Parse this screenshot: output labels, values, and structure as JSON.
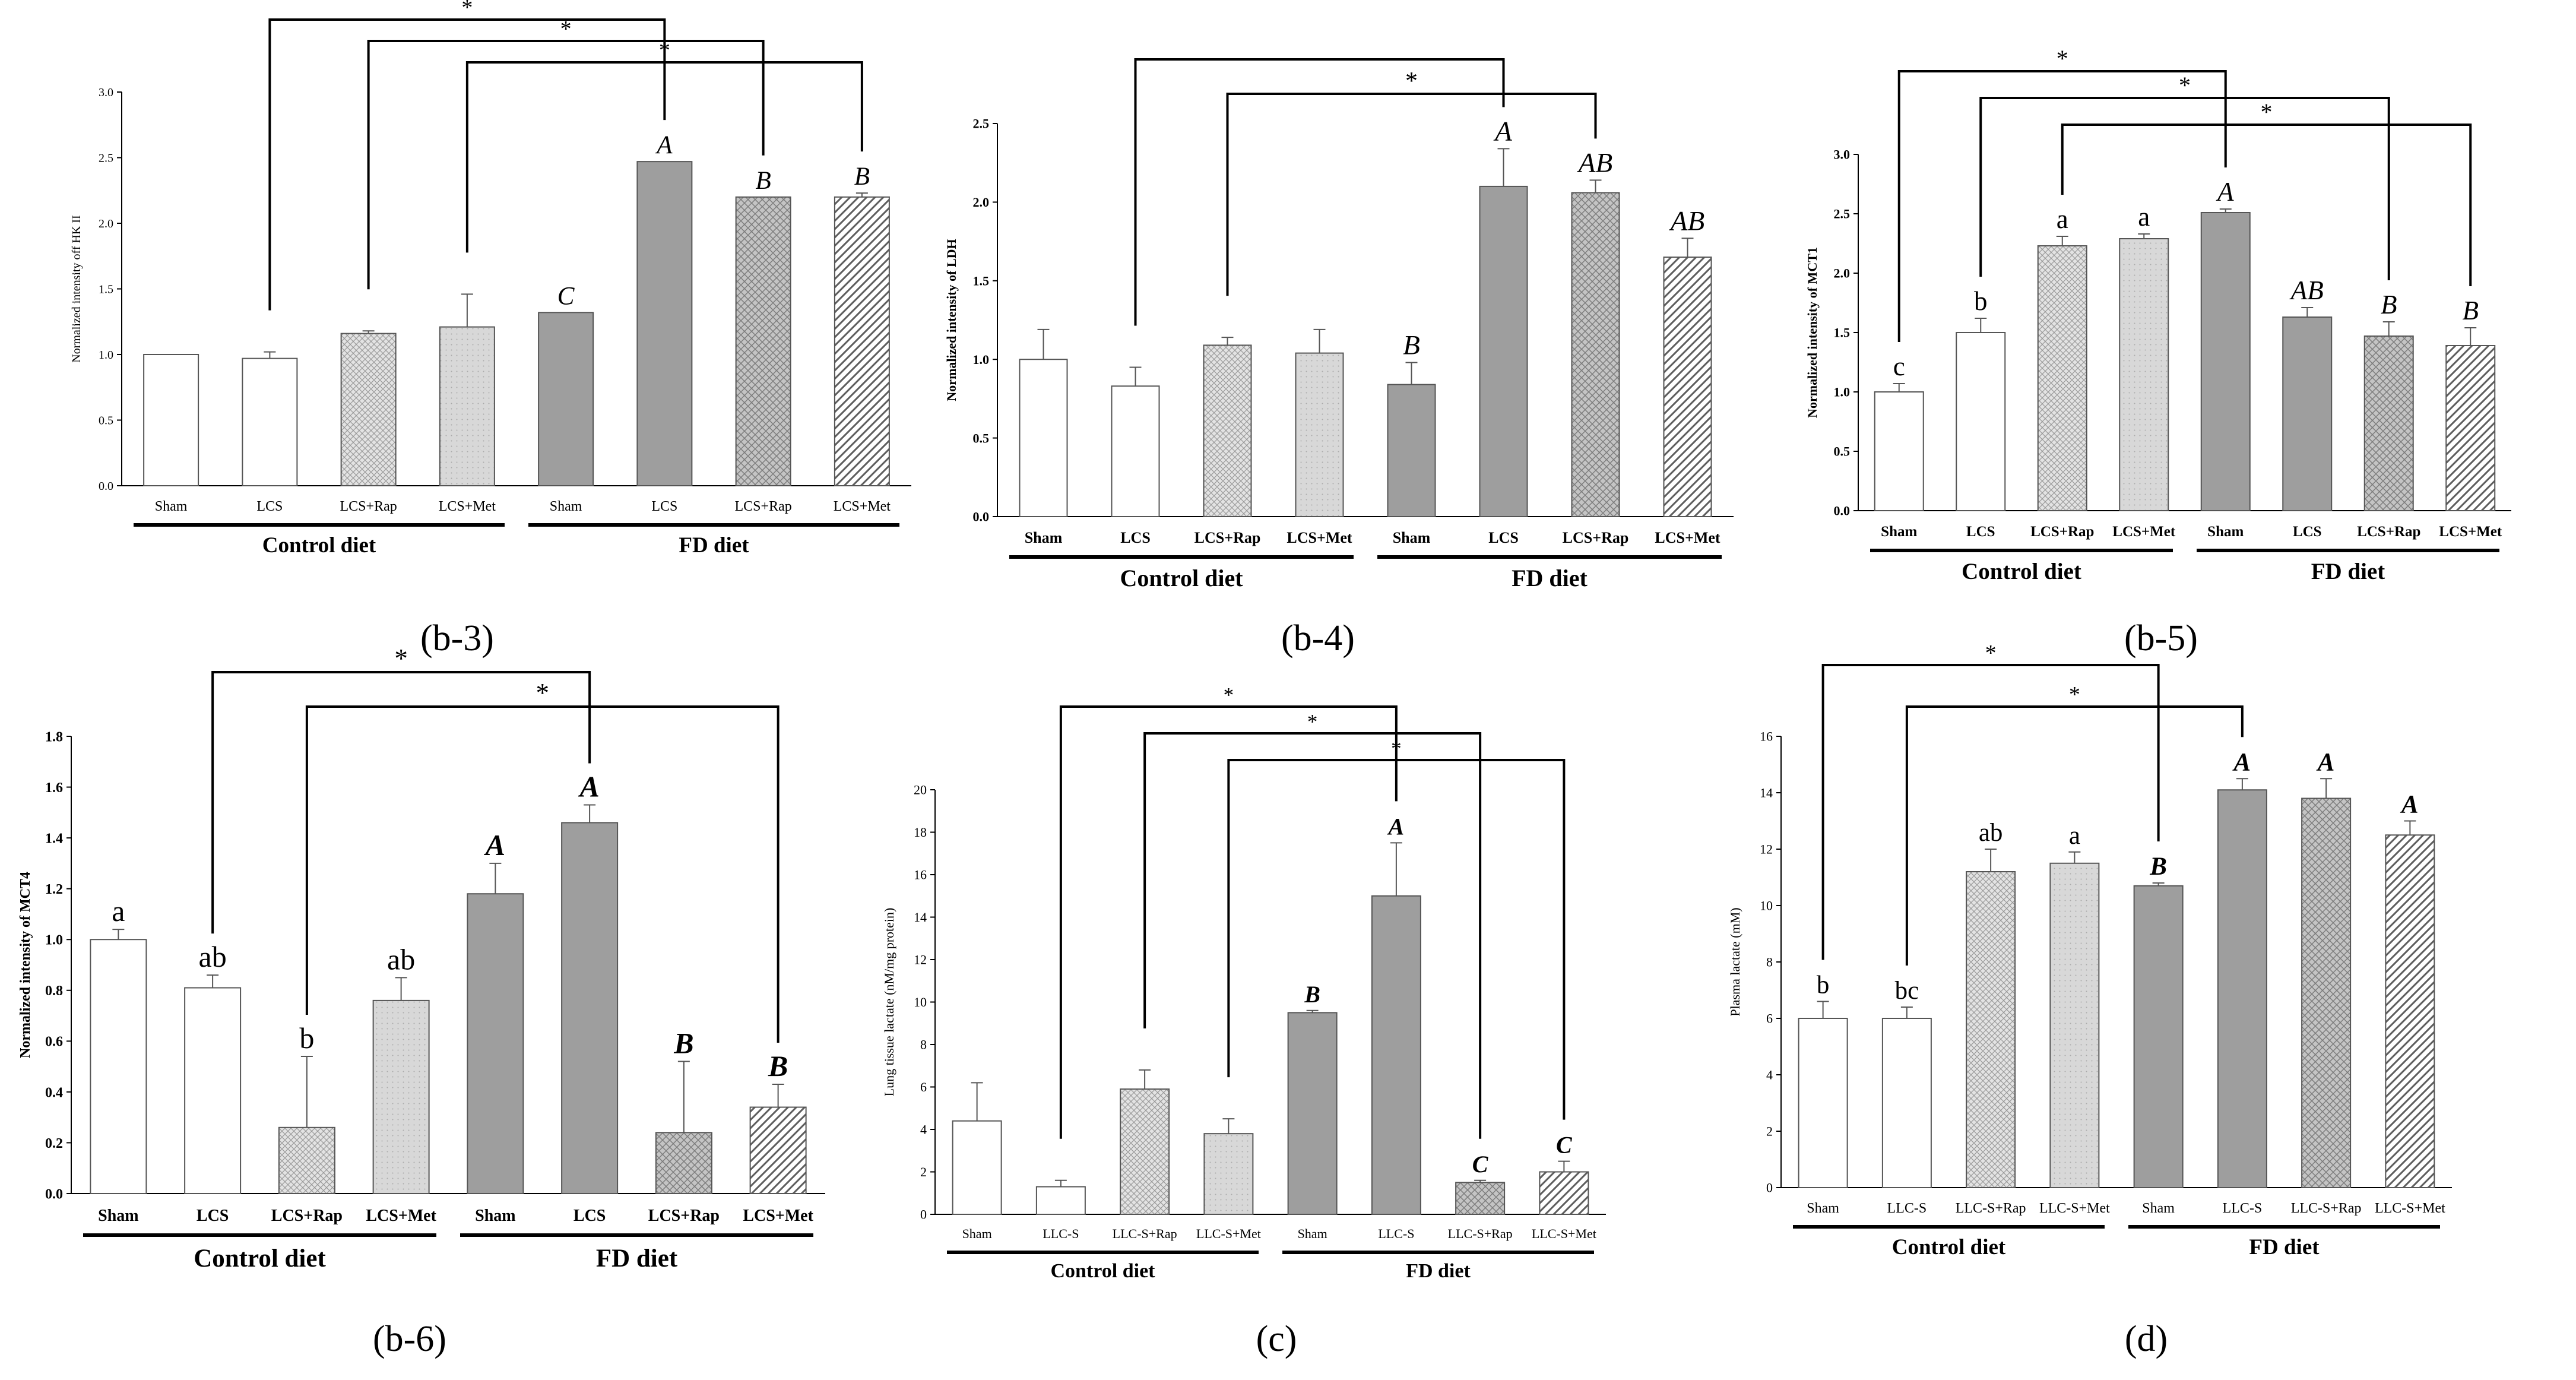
{
  "figure": {
    "labels": [
      "(b-3)",
      "(b-4)",
      "(b-5)",
      "(b-6)",
      "(c)",
      "(d)"
    ]
  },
  "colors": {
    "axis": "#000000",
    "ctrl_fill": "#ffffff",
    "fd_fill": "#9e9e9e",
    "rap_fill": "#e3e3e3",
    "met_fill": "#d2d2d2",
    "hatch": "#6a6a6a",
    "sig_line": "#000000"
  },
  "chart_data": [
    {
      "type": "bar",
      "panel": "(b-3)",
      "ylabel": "Normalized intensity off HK II",
      "ylim": [
        0,
        3.0
      ],
      "yticks": [
        0.0,
        0.5,
        1.0,
        1.5,
        2.0,
        2.5,
        3.0
      ],
      "tick_decimals": 1,
      "categories": [
        "Sham",
        "LCS",
        "LCS+Rap",
        "LCS+Met",
        "Sham",
        "LCS",
        "LCS+Rap",
        "LCS+Met"
      ],
      "values": [
        1.0,
        0.97,
        1.16,
        1.21,
        1.32,
        2.47,
        2.2,
        2.2
      ],
      "errors": [
        0.0,
        0.05,
        0.02,
        0.25,
        0.0,
        0.0,
        0.0,
        0.03
      ],
      "sig_letters": [
        "",
        "",
        "",
        "",
        "C",
        "A",
        "B",
        "B"
      ],
      "groups": [
        "Control diet",
        "FD diet"
      ],
      "brackets": [
        {
          "from": 1,
          "to": 5,
          "label": "*"
        },
        {
          "from": 2,
          "to": 6,
          "label": "*"
        },
        {
          "from": 3,
          "to": 7,
          "label": "*"
        }
      ]
    },
    {
      "type": "bar",
      "panel": "(b-4)",
      "ylabel": "Normalized intensity of LDH",
      "ylim": [
        0,
        2.5
      ],
      "yticks": [
        0.0,
        0.5,
        1.0,
        1.5,
        2.0,
        2.5
      ],
      "tick_decimals": 1,
      "categories": [
        "Sham",
        "LCS",
        "LCS+Rap",
        "LCS+Met",
        "Sham",
        "LCS",
        "LCS+Rap",
        "LCS+Met"
      ],
      "values": [
        1.0,
        0.83,
        1.09,
        1.04,
        0.84,
        2.1,
        2.06,
        1.65
      ],
      "errors": [
        0.19,
        0.12,
        0.05,
        0.15,
        0.14,
        0.24,
        0.08,
        0.12
      ],
      "sig_letters": [
        "",
        "",
        "",
        "",
        "B",
        "A",
        "AB",
        "AB"
      ],
      "groups": [
        "Control diet",
        "FD diet"
      ],
      "brackets": [
        {
          "from": 1,
          "to": 5,
          "label": ""
        },
        {
          "from": 2,
          "to": 6,
          "label": "*"
        }
      ]
    },
    {
      "type": "bar",
      "panel": "(b-5)",
      "ylabel": "Normalized intensity of MCT1",
      "ylim": [
        0,
        3.0
      ],
      "yticks": [
        0.0,
        0.5,
        1.0,
        1.5,
        2.0,
        2.5,
        3.0
      ],
      "tick_decimals": 1,
      "categories": [
        "Sham",
        "LCS",
        "LCS+Rap",
        "LCS+Met",
        "Sham",
        "LCS",
        "LCS+Rap",
        "LCS+Met"
      ],
      "values": [
        1.0,
        1.5,
        2.23,
        2.29,
        2.51,
        1.63,
        1.47,
        1.39
      ],
      "errors": [
        0.07,
        0.12,
        0.08,
        0.04,
        0.03,
        0.08,
        0.12,
        0.15
      ],
      "sig_letters": [
        "c",
        "b",
        "a",
        "a",
        "A",
        "AB",
        "B",
        "B"
      ],
      "groups": [
        "Control diet",
        "FD diet"
      ],
      "brackets": [
        {
          "from": 0,
          "to": 4,
          "label": "*"
        },
        {
          "from": 1,
          "to": 6,
          "label": "*"
        },
        {
          "from": 2,
          "to": 7,
          "label": "*"
        }
      ]
    },
    {
      "type": "bar",
      "panel": "(b-6)",
      "ylabel": "Normalized intensity of MCT4",
      "ylim": [
        0,
        1.8
      ],
      "yticks": [
        0.0,
        0.2,
        0.4,
        0.6,
        0.8,
        1.0,
        1.2,
        1.4,
        1.6,
        1.8
      ],
      "tick_decimals": 1,
      "categories": [
        "Sham",
        "LCS",
        "LCS+Rap",
        "LCS+Met",
        "Sham",
        "LCS",
        "LCS+Rap",
        "LCS+Met"
      ],
      "values": [
        1.0,
        0.81,
        0.26,
        0.76,
        1.18,
        1.46,
        0.24,
        0.34
      ],
      "errors": [
        0.04,
        0.05,
        0.28,
        0.09,
        0.12,
        0.07,
        0.28,
        0.09
      ],
      "sig_letters": [
        "a",
        "ab",
        "b",
        "ab",
        "A",
        "A",
        "B",
        "B"
      ],
      "groups": [
        "Control diet",
        "FD diet"
      ],
      "brackets": [
        {
          "from": 1,
          "to": 5,
          "label": "*"
        },
        {
          "from": 2,
          "to": 7,
          "label": "*"
        }
      ]
    },
    {
      "type": "bar",
      "panel": "(c)",
      "ylabel": "Lung tissue lactate (nM/mg protein)",
      "ylim": [
        0,
        20
      ],
      "yticks": [
        0,
        2,
        4,
        6,
        8,
        10,
        12,
        14,
        16,
        18,
        20
      ],
      "tick_decimals": 0,
      "categories": [
        "Sham",
        "LLC-S",
        "LLC-S+Rap",
        "LLC-S+Met",
        "Sham",
        "LLC-S",
        "LLC-S+Rap",
        "LLC-S+Met"
      ],
      "values": [
        4.4,
        1.3,
        5.9,
        3.8,
        9.5,
        15.0,
        1.5,
        2.0
      ],
      "errors": [
        1.8,
        0.3,
        0.9,
        0.7,
        0.1,
        2.5,
        0.1,
        0.5
      ],
      "sig_letters": [
        "",
        "",
        "",
        "",
        "B",
        "A",
        "C",
        "C"
      ],
      "groups": [
        "Control diet",
        "FD diet"
      ],
      "brackets": [
        {
          "from": 1,
          "to": 5,
          "label": "*"
        },
        {
          "from": 2,
          "to": 6,
          "label": "*"
        },
        {
          "from": 3,
          "to": 7,
          "label": "*"
        }
      ]
    },
    {
      "type": "bar",
      "panel": "(d)",
      "ylabel": "Plasma lactate (mM)",
      "ylim": [
        0,
        16
      ],
      "yticks": [
        0,
        2,
        4,
        6,
        8,
        10,
        12,
        14,
        16
      ],
      "tick_decimals": 0,
      "categories": [
        "Sham",
        "LLC-S",
        "LLC-S+Rap",
        "LLC-S+Met",
        "Sham",
        "LLC-S",
        "LLC-S+Rap",
        "LLC-S+Met"
      ],
      "values": [
        6.0,
        6.0,
        11.2,
        11.5,
        10.7,
        14.1,
        13.8,
        12.5
      ],
      "errors": [
        0.6,
        0.4,
        0.8,
        0.4,
        0.1,
        0.4,
        0.7,
        0.5
      ],
      "sig_letters": [
        "b",
        "bc",
        "ab",
        "a",
        "B",
        "A",
        "A",
        "A"
      ],
      "groups": [
        "Control diet",
        "FD diet"
      ],
      "brackets": [
        {
          "from": 0,
          "to": 4,
          "label": "*"
        },
        {
          "from": 1,
          "to": 5,
          "label": "*"
        }
      ]
    }
  ]
}
